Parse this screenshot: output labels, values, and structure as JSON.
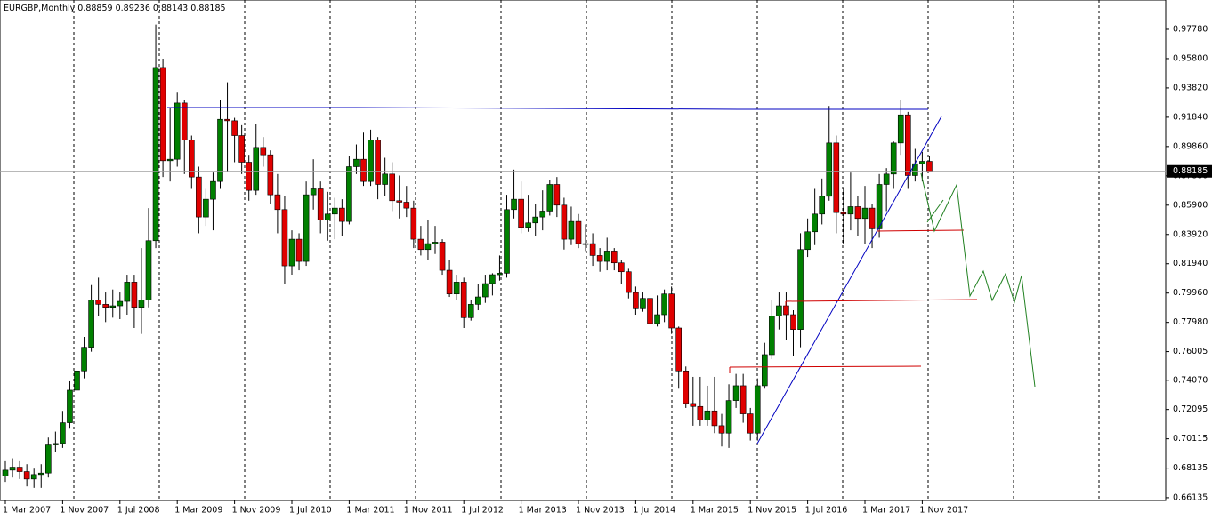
{
  "chart_data": {
    "type": "candlestick",
    "symbol": "EURGBP,Monthly",
    "up_color": "#008000",
    "down_color": "#e00000",
    "ylim": [
      0.6595,
      0.9976
    ],
    "yticks": [
      {
        "value": 0.9778,
        "label": "0.97780"
      },
      {
        "value": 0.958,
        "label": "0.95800"
      },
      {
        "value": 0.9382,
        "label": "0.93820"
      },
      {
        "value": 0.9184,
        "label": "0.91840"
      },
      {
        "value": 0.8986,
        "label": "0.89860"
      },
      {
        "value": 0.8788,
        "label": "0.87880"
      },
      {
        "value": 0.859,
        "label": "0.85900"
      },
      {
        "value": 0.8392,
        "label": "0.83920"
      },
      {
        "value": 0.8194,
        "label": "0.81940"
      },
      {
        "value": 0.7996,
        "label": "0.79960"
      },
      {
        "value": 0.7798,
        "label": "0.77980"
      },
      {
        "value": 0.76005,
        "label": "0.76005"
      },
      {
        "value": 0.7407,
        "label": "0.74070"
      },
      {
        "value": 0.72095,
        "label": "0.72095"
      },
      {
        "value": 0.70115,
        "label": "0.70115"
      },
      {
        "value": 0.68135,
        "label": "0.68135"
      },
      {
        "value": 0.66135,
        "label": "0.66135"
      }
    ],
    "categories": [
      "1 Mar 2007",
      null,
      null,
      null,
      null,
      null,
      null,
      null,
      "1 Nov 2007",
      null,
      null,
      null,
      null,
      null,
      null,
      null,
      "1 Jul 2008",
      null,
      null,
      null,
      null,
      null,
      null,
      null,
      "1 Mar 2009",
      null,
      null,
      null,
      null,
      null,
      null,
      null,
      "1 Nov 2009",
      null,
      null,
      null,
      null,
      null,
      null,
      null,
      "1 Jul 2010",
      null,
      null,
      null,
      null,
      null,
      null,
      null,
      "1 Mar 2011",
      null,
      null,
      null,
      null,
      null,
      null,
      null,
      "1 Nov 2011",
      null,
      null,
      null,
      null,
      null,
      null,
      null,
      "1 Jul 2012",
      null,
      null,
      null,
      null,
      null,
      null,
      null,
      "1 Mar 2013",
      null,
      null,
      null,
      null,
      null,
      null,
      null,
      "1 Nov 2013",
      null,
      null,
      null,
      null,
      null,
      null,
      null,
      "1 Jul 2014",
      null,
      null,
      null,
      null,
      null,
      null,
      null,
      "1 Mar 2015",
      null,
      null,
      null,
      null,
      null,
      null,
      null,
      "1 Nov 2015",
      null,
      null,
      null,
      null,
      null,
      null,
      null,
      "1 Jul 2016",
      null,
      null,
      null,
      null,
      null,
      null,
      null,
      "1 Mar 2017",
      null,
      null,
      null,
      null,
      null,
      null,
      null,
      "1 Nov 2017",
      null
    ],
    "ohlc": [
      [
        0.676,
        0.686,
        0.672,
        0.68
      ],
      [
        0.68,
        0.688,
        0.675,
        0.682
      ],
      [
        0.682,
        0.686,
        0.674,
        0.679
      ],
      [
        0.679,
        0.684,
        0.669,
        0.674
      ],
      [
        0.674,
        0.681,
        0.668,
        0.677
      ],
      [
        0.677,
        0.684,
        0.668,
        0.678
      ],
      [
        0.678,
        0.702,
        0.675,
        0.697
      ],
      [
        0.697,
        0.706,
        0.692,
        0.698
      ],
      [
        0.698,
        0.72,
        0.695,
        0.712
      ],
      [
        0.712,
        0.74,
        0.708,
        0.734
      ],
      [
        0.734,
        0.756,
        0.73,
        0.747
      ],
      [
        0.747,
        0.77,
        0.742,
        0.763
      ],
      [
        0.763,
        0.805,
        0.76,
        0.795
      ],
      [
        0.795,
        0.81,
        0.784,
        0.792
      ],
      [
        0.792,
        0.8,
        0.78,
        0.79
      ],
      [
        0.79,
        0.802,
        0.783,
        0.791
      ],
      [
        0.791,
        0.8,
        0.782,
        0.794
      ],
      [
        0.794,
        0.812,
        0.785,
        0.807
      ],
      [
        0.807,
        0.812,
        0.776,
        0.79
      ],
      [
        0.79,
        0.83,
        0.772,
        0.795
      ],
      [
        0.795,
        0.857,
        0.79,
        0.835
      ],
      [
        0.835,
        0.981,
        0.83,
        0.952
      ],
      [
        0.952,
        0.958,
        0.878,
        0.889
      ],
      [
        0.889,
        0.925,
        0.875,
        0.89
      ],
      [
        0.89,
        0.935,
        0.885,
        0.928
      ],
      [
        0.928,
        0.93,
        0.88,
        0.903
      ],
      [
        0.903,
        0.906,
        0.87,
        0.878
      ],
      [
        0.878,
        0.885,
        0.84,
        0.851
      ],
      [
        0.851,
        0.87,
        0.845,
        0.863
      ],
      [
        0.863,
        0.881,
        0.842,
        0.875
      ],
      [
        0.875,
        0.93,
        0.87,
        0.917
      ],
      [
        0.917,
        0.942,
        0.882,
        0.916
      ],
      [
        0.916,
        0.918,
        0.888,
        0.906
      ],
      [
        0.906,
        0.913,
        0.88,
        0.888
      ],
      [
        0.888,
        0.893,
        0.862,
        0.869
      ],
      [
        0.869,
        0.914,
        0.866,
        0.898
      ],
      [
        0.898,
        0.905,
        0.885,
        0.893
      ],
      [
        0.893,
        0.896,
        0.86,
        0.866
      ],
      [
        0.866,
        0.88,
        0.84,
        0.856
      ],
      [
        0.856,
        0.865,
        0.806,
        0.818
      ],
      [
        0.818,
        0.842,
        0.812,
        0.836
      ],
      [
        0.836,
        0.84,
        0.815,
        0.821
      ],
      [
        0.821,
        0.875,
        0.818,
        0.866
      ],
      [
        0.866,
        0.89,
        0.856,
        0.87
      ],
      [
        0.87,
        0.875,
        0.84,
        0.849
      ],
      [
        0.849,
        0.868,
        0.835,
        0.853
      ],
      [
        0.853,
        0.864,
        0.836,
        0.857
      ],
      [
        0.857,
        0.863,
        0.838,
        0.848
      ],
      [
        0.848,
        0.892,
        0.846,
        0.885
      ],
      [
        0.885,
        0.9,
        0.88,
        0.89
      ],
      [
        0.89,
        0.908,
        0.872,
        0.875
      ],
      [
        0.875,
        0.91,
        0.872,
        0.903
      ],
      [
        0.903,
        0.905,
        0.863,
        0.873
      ],
      [
        0.873,
        0.891,
        0.865,
        0.88
      ],
      [
        0.88,
        0.888,
        0.855,
        0.862
      ],
      [
        0.862,
        0.879,
        0.85,
        0.861
      ],
      [
        0.861,
        0.872,
        0.851,
        0.857
      ],
      [
        0.857,
        0.862,
        0.83,
        0.836
      ],
      [
        0.836,
        0.845,
        0.825,
        0.829
      ],
      [
        0.829,
        0.849,
        0.822,
        0.833
      ],
      [
        0.833,
        0.845,
        0.826,
        0.834
      ],
      [
        0.834,
        0.836,
        0.812,
        0.815
      ],
      [
        0.815,
        0.822,
        0.797,
        0.799
      ],
      [
        0.799,
        0.812,
        0.795,
        0.807
      ],
      [
        0.807,
        0.81,
        0.776,
        0.783
      ],
      [
        0.783,
        0.795,
        0.781,
        0.792
      ],
      [
        0.792,
        0.806,
        0.788,
        0.797
      ],
      [
        0.797,
        0.812,
        0.793,
        0.806
      ],
      [
        0.806,
        0.813,
        0.798,
        0.812
      ],
      [
        0.812,
        0.825,
        0.808,
        0.813
      ],
      [
        0.813,
        0.866,
        0.81,
        0.856
      ],
      [
        0.856,
        0.883,
        0.85,
        0.863
      ],
      [
        0.863,
        0.875,
        0.84,
        0.844
      ],
      [
        0.844,
        0.866,
        0.841,
        0.847
      ],
      [
        0.847,
        0.86,
        0.838,
        0.851
      ],
      [
        0.851,
        0.869,
        0.842,
        0.855
      ],
      [
        0.855,
        0.876,
        0.852,
        0.873
      ],
      [
        0.873,
        0.878,
        0.851,
        0.859
      ],
      [
        0.859,
        0.864,
        0.829,
        0.836
      ],
      [
        0.836,
        0.858,
        0.832,
        0.848
      ],
      [
        0.848,
        0.853,
        0.83,
        0.833
      ],
      [
        0.833,
        0.846,
        0.828,
        0.833
      ],
      [
        0.833,
        0.84,
        0.818,
        0.825
      ],
      [
        0.825,
        0.83,
        0.814,
        0.821
      ],
      [
        0.821,
        0.837,
        0.815,
        0.828
      ],
      [
        0.828,
        0.83,
        0.815,
        0.82
      ],
      [
        0.82,
        0.822,
        0.806,
        0.814
      ],
      [
        0.814,
        0.816,
        0.796,
        0.8
      ],
      [
        0.8,
        0.804,
        0.785,
        0.789
      ],
      [
        0.789,
        0.8,
        0.787,
        0.796
      ],
      [
        0.796,
        0.797,
        0.775,
        0.779
      ],
      [
        0.779,
        0.798,
        0.777,
        0.785
      ],
      [
        0.785,
        0.802,
        0.78,
        0.799
      ],
      [
        0.799,
        0.804,
        0.772,
        0.776
      ],
      [
        0.776,
        0.777,
        0.735,
        0.747
      ],
      [
        0.747,
        0.75,
        0.722,
        0.725
      ],
      [
        0.725,
        0.743,
        0.71,
        0.723
      ],
      [
        0.723,
        0.743,
        0.71,
        0.714
      ],
      [
        0.714,
        0.737,
        0.71,
        0.72
      ],
      [
        0.72,
        0.743,
        0.705,
        0.71
      ],
      [
        0.71,
        0.718,
        0.696,
        0.705
      ],
      [
        0.705,
        0.738,
        0.695,
        0.727
      ],
      [
        0.727,
        0.745,
        0.722,
        0.737
      ],
      [
        0.737,
        0.745,
        0.712,
        0.718
      ],
      [
        0.718,
        0.722,
        0.7,
        0.705
      ],
      [
        0.705,
        0.742,
        0.7,
        0.737
      ],
      [
        0.737,
        0.766,
        0.735,
        0.758
      ],
      [
        0.758,
        0.795,
        0.755,
        0.784
      ],
      [
        0.784,
        0.8,
        0.775,
        0.791
      ],
      [
        0.791,
        0.8,
        0.768,
        0.785
      ],
      [
        0.785,
        0.788,
        0.757,
        0.775
      ],
      [
        0.775,
        0.84,
        0.763,
        0.829
      ],
      [
        0.829,
        0.85,
        0.824,
        0.841
      ],
      [
        0.841,
        0.87,
        0.832,
        0.853
      ],
      [
        0.853,
        0.877,
        0.846,
        0.865
      ],
      [
        0.865,
        0.926,
        0.862,
        0.901
      ],
      [
        0.901,
        0.906,
        0.84,
        0.854
      ],
      [
        0.854,
        0.87,
        0.833,
        0.853
      ],
      [
        0.853,
        0.881,
        0.842,
        0.858
      ],
      [
        0.858,
        0.865,
        0.838,
        0.85
      ],
      [
        0.85,
        0.872,
        0.833,
        0.857
      ],
      [
        0.857,
        0.86,
        0.83,
        0.843
      ],
      [
        0.843,
        0.88,
        0.837,
        0.873
      ],
      [
        0.873,
        0.884,
        0.855,
        0.88
      ],
      [
        0.88,
        0.902,
        0.87,
        0.901
      ],
      [
        0.901,
        0.93,
        0.893,
        0.92
      ],
      [
        0.92,
        0.922,
        0.87,
        0.879
      ],
      [
        0.879,
        0.897,
        0.875,
        0.887
      ],
      [
        0.887,
        0.895,
        0.875,
        0.8886
      ],
      [
        0.88859,
        0.89236,
        0.88143,
        0.88185
      ]
    ]
  }
}
